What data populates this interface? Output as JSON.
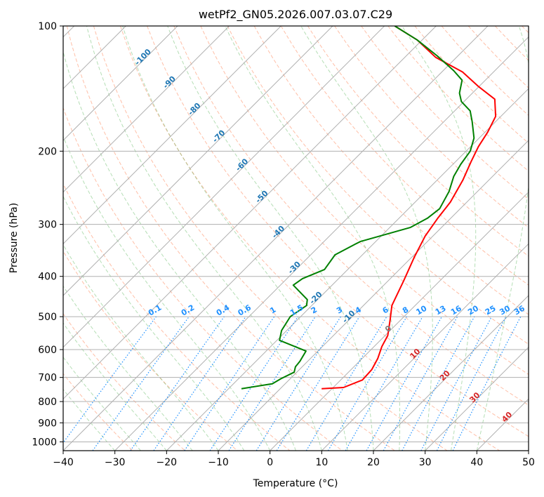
{
  "chart_data": {
    "type": "line",
    "title": "wetPf2_GN05.2026.007.03.07.C29",
    "xlabel": "Temperature (°C)",
    "ylabel": "Pressure (hPa)",
    "xlim": [
      -40,
      50
    ],
    "ylim": [
      1050,
      100
    ],
    "y_scale": "log",
    "grid": true,
    "x_ticks": [
      "−40",
      "−30",
      "−20",
      "−10",
      "0",
      "10",
      "20",
      "30",
      "40",
      "50"
    ],
    "y_ticks": [
      "100",
      "200",
      "300",
      "400",
      "500",
      "600",
      "700",
      "800",
      "900",
      "1000"
    ],
    "y_tick_values": [
      100,
      200,
      300,
      400,
      500,
      600,
      700,
      800,
      900,
      1000
    ],
    "series": [
      {
        "color": "#ff0000",
        "points": [
          [
            -2,
            745
          ],
          [
            2,
            740
          ],
          [
            4.2,
            710
          ],
          [
            4.0,
            670
          ],
          [
            3.0,
            630
          ],
          [
            1.5,
            590
          ],
          [
            0.5,
            555
          ],
          [
            -2,
            510
          ],
          [
            -4.5,
            470
          ],
          [
            -7,
            410
          ],
          [
            -9.5,
            360
          ],
          [
            -11.5,
            320
          ],
          [
            -12.5,
            290
          ],
          [
            -13.2,
            265
          ],
          [
            -15,
            235
          ],
          [
            -17,
            212
          ],
          [
            -18.5,
            195
          ],
          [
            -19.5,
            180
          ],
          [
            -21,
            165
          ],
          [
            -24.5,
            150
          ],
          [
            -30,
            140
          ],
          [
            -36,
            129
          ],
          [
            -44,
            119
          ],
          [
            -51,
            108
          ],
          [
            -58,
            100
          ]
        ]
      },
      {
        "color": "#008000",
        "points": [
          [
            -17.5,
            745
          ],
          [
            -12.5,
            725
          ],
          [
            -11.8,
            705
          ],
          [
            -10.5,
            680
          ],
          [
            -11.3,
            660
          ],
          [
            -11.5,
            640
          ],
          [
            -12.3,
            605
          ],
          [
            -19.5,
            570
          ],
          [
            -21,
            540
          ],
          [
            -22,
            500
          ],
          [
            -21,
            470
          ],
          [
            -22,
            455
          ],
          [
            -27.5,
            420
          ],
          [
            -27.0,
            405
          ],
          [
            -24.5,
            385
          ],
          [
            -25.3,
            355
          ],
          [
            -23.0,
            330
          ],
          [
            -16.0,
            305
          ],
          [
            -14.5,
            290
          ],
          [
            -14.0,
            275
          ],
          [
            -15.5,
            250
          ],
          [
            -17.5,
            230
          ],
          [
            -18.5,
            215
          ],
          [
            -19.2,
            200
          ],
          [
            -21.0,
            186
          ],
          [
            -24.5,
            170
          ],
          [
            -27,
            160
          ],
          [
            -30.5,
            152
          ],
          [
            -32.5,
            145
          ],
          [
            -34.5,
            135
          ],
          [
            -38,
            128
          ],
          [
            -44,
            118
          ],
          [
            -51,
            108
          ],
          [
            -58,
            100
          ]
        ]
      }
    ],
    "isotherm_labels": [
      "-100",
      "-90",
      "-80",
      "-70",
      "-60",
      "-50",
      "-40",
      "-30",
      "-20",
      "-10"
    ],
    "isotherm_label_values": [
      -100,
      -90,
      -80,
      -70,
      -60,
      -50,
      -40,
      -30,
      -20,
      -10
    ],
    "isotherm_label_pressures": [
      120,
      138,
      160,
      186,
      218,
      260,
      316,
      385,
      455,
      505
    ],
    "mixing_ratio_labels": [
      "0.1",
      "0.2",
      "0.4",
      "0.6",
      "1",
      "1.5",
      "2",
      "3",
      "4",
      "6",
      "8",
      "10",
      "13",
      "16",
      "20",
      "25",
      "30",
      "36"
    ],
    "mixing_ratio_values": [
      0.1,
      0.2,
      0.4,
      0.6,
      1,
      1.5,
      2,
      3,
      4,
      6,
      8,
      10,
      13,
      16,
      20,
      25,
      30,
      36
    ],
    "warm_isotherm_labels": [
      "0",
      "10",
      "20",
      "30",
      "40"
    ],
    "warm_isotherm_values": [
      0,
      10,
      20,
      30,
      40
    ],
    "warm_isotherm_pressures": [
      540,
      620,
      700,
      790,
      880
    ],
    "colors": {
      "temperature": "#ff0000",
      "dewpoint": "#008000",
      "isotherm_label": "#1f77b4",
      "mixing_ratio": "#1e90ff",
      "dry_adiabat": "#ff7f50",
      "moist_adiabat": "#2ca02c",
      "zero_label": "#808080",
      "warm_label": "#d62728",
      "grid": "#b0b0b0"
    }
  }
}
